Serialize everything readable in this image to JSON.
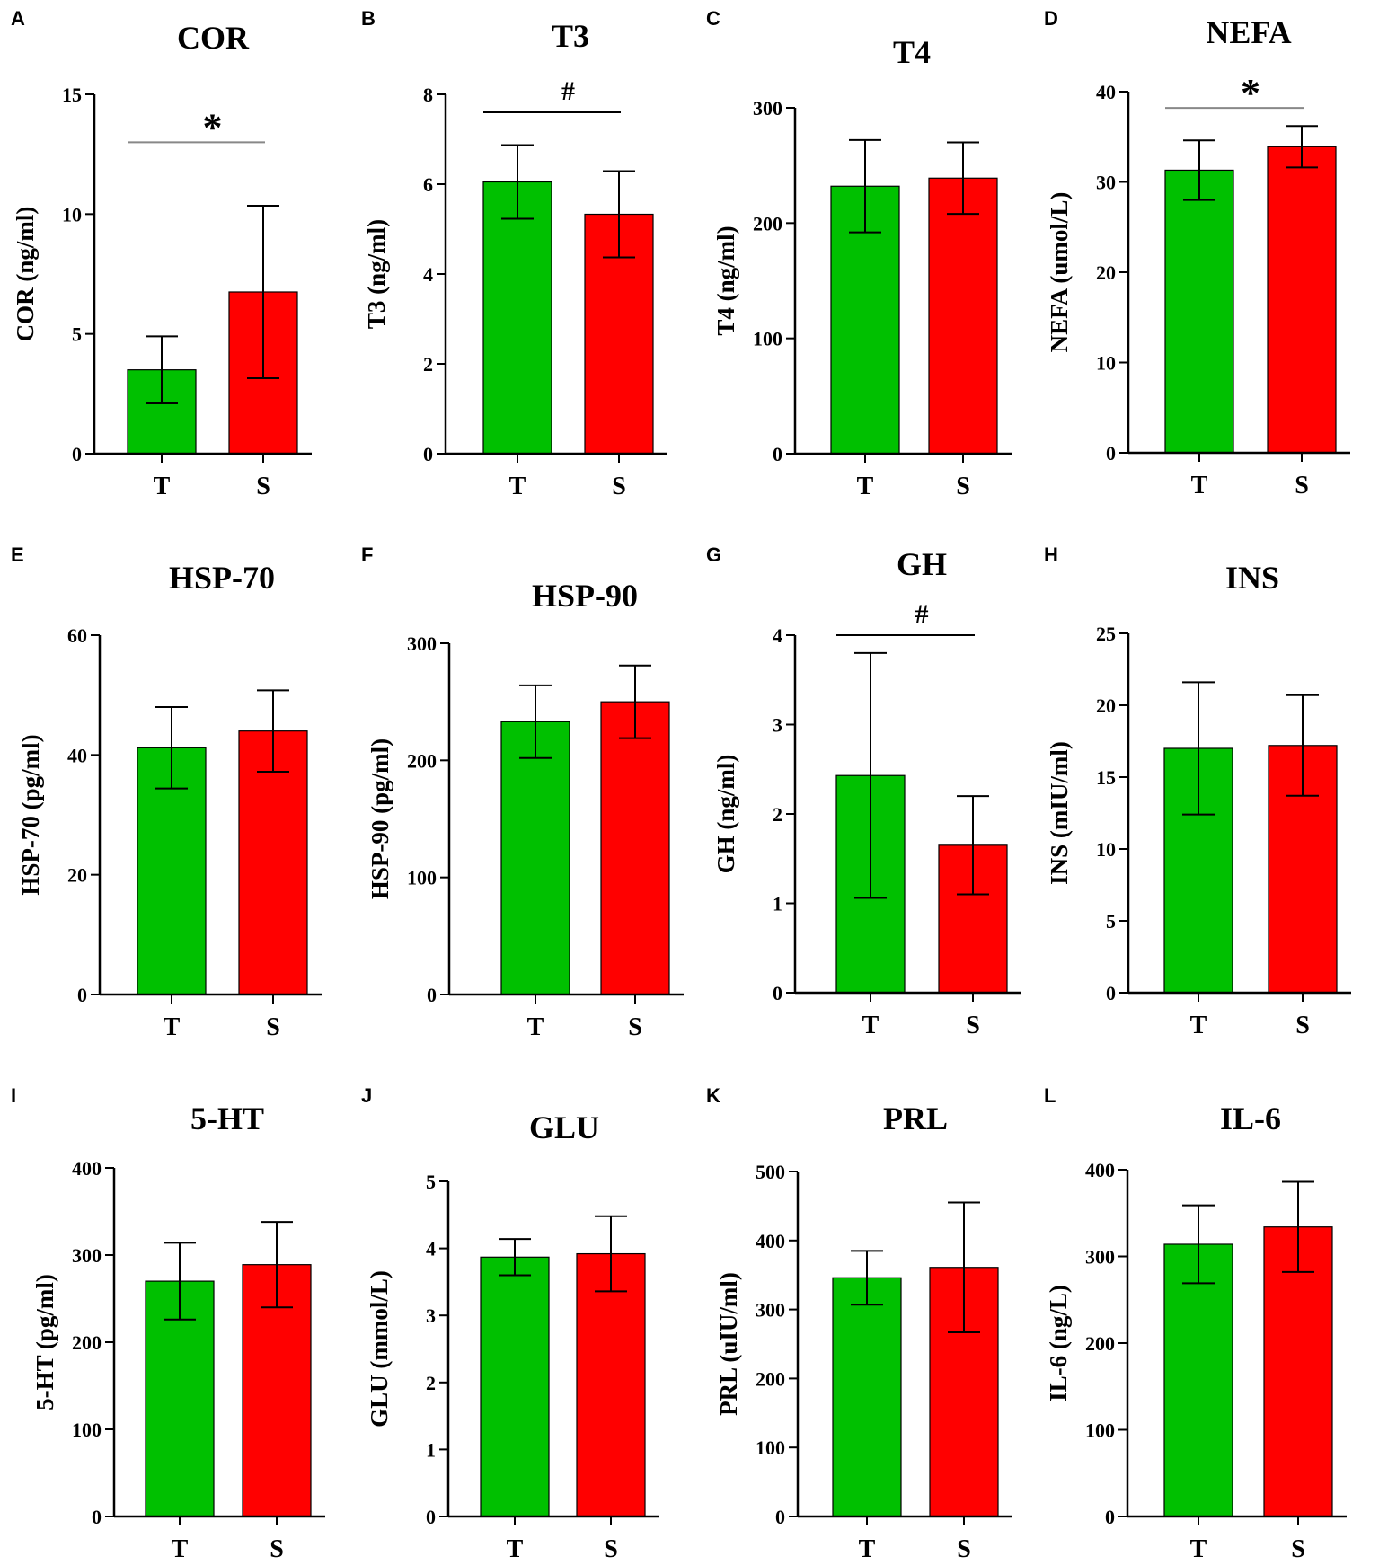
{
  "colors": {
    "T": "#00c000",
    "S": "#ff0000",
    "axis": "#000000"
  },
  "chart_data": [
    {
      "panel": "A",
      "type": "bar",
      "title": "COR",
      "ylabel": "COR (ng/ml)",
      "categories": [
        "T",
        "S"
      ],
      "values": [
        3.5,
        6.75
      ],
      "errors": [
        1.4,
        3.6
      ],
      "ylim": [
        0,
        15
      ],
      "yticks": [
        0,
        5,
        10,
        15
      ],
      "sig": {
        "symbol": "*",
        "value": 13.0
      }
    },
    {
      "panel": "B",
      "type": "bar",
      "title": "T3",
      "ylabel": "T3 (ng/ml)",
      "categories": [
        "T",
        "S"
      ],
      "values": [
        6.05,
        5.33
      ],
      "errors": [
        0.82,
        0.96
      ],
      "ylim": [
        0,
        8
      ],
      "yticks": [
        0,
        2,
        4,
        6,
        8
      ],
      "sig": {
        "symbol": "#",
        "value": 7.6
      }
    },
    {
      "panel": "C",
      "type": "bar",
      "title": "T4",
      "ylabel": "T4 (ng/ml)",
      "categories": [
        "T",
        "S"
      ],
      "values": [
        232,
        239
      ],
      "errors": [
        40,
        31
      ],
      "ylim": [
        0,
        300
      ],
      "yticks": [
        0,
        100,
        200,
        300
      ],
      "sig": null
    },
    {
      "panel": "D",
      "type": "bar",
      "title": "NEFA",
      "ylabel": "NEFA (umol/L)",
      "categories": [
        "T",
        "S"
      ],
      "values": [
        31.3,
        33.9
      ],
      "errors": [
        3.3,
        2.3
      ],
      "ylim": [
        0,
        40
      ],
      "yticks": [
        0,
        10,
        20,
        30,
        40
      ],
      "sig": {
        "symbol": "*",
        "value": 38.2
      }
    },
    {
      "panel": "E",
      "type": "bar",
      "title": "HSP-70",
      "ylabel": "HSP-70 (pg/ml)",
      "categories": [
        "T",
        "S"
      ],
      "values": [
        41.2,
        44.0
      ],
      "errors": [
        6.8,
        6.8
      ],
      "ylim": [
        0,
        60
      ],
      "yticks": [
        0,
        20,
        40,
        60
      ],
      "sig": null
    },
    {
      "panel": "F",
      "type": "bar",
      "title": "HSP-90",
      "ylabel": "HSP-90 (pg/ml)",
      "categories": [
        "T",
        "S"
      ],
      "values": [
        233,
        250
      ],
      "errors": [
        31,
        31
      ],
      "ylim": [
        0,
        300
      ],
      "yticks": [
        0,
        100,
        200,
        300
      ],
      "sig": null
    },
    {
      "panel": "G",
      "type": "bar",
      "title": "GH",
      "ylabel": "GH (ng/ml)",
      "categories": [
        "T",
        "S"
      ],
      "values": [
        2.43,
        1.65
      ],
      "errors": [
        1.37,
        0.55
      ],
      "ylim": [
        0,
        4
      ],
      "yticks": [
        0,
        1,
        2,
        3,
        4
      ],
      "sig": {
        "symbol": "#",
        "value": 4.0
      }
    },
    {
      "panel": "H",
      "type": "bar",
      "title": "INS",
      "ylabel": "INS (mIU/ml)",
      "categories": [
        "T",
        "S"
      ],
      "values": [
        17.0,
        17.2
      ],
      "errors": [
        4.6,
        3.5
      ],
      "ylim": [
        0,
        25
      ],
      "yticks": [
        0,
        5,
        10,
        15,
        20,
        25
      ],
      "sig": null
    },
    {
      "panel": "I",
      "type": "bar",
      "title": "5-HT",
      "ylabel": "5-HT (pg/ml)",
      "categories": [
        "T",
        "S"
      ],
      "values": [
        270,
        289
      ],
      "errors": [
        44,
        49
      ],
      "ylim": [
        0,
        400
      ],
      "yticks": [
        0,
        100,
        200,
        300,
        400
      ],
      "sig": null
    },
    {
      "panel": "J",
      "type": "bar",
      "title": "GLU",
      "ylabel": "GLU (mmol/L)",
      "categories": [
        "T",
        "S"
      ],
      "values": [
        3.87,
        3.92
      ],
      "errors": [
        0.27,
        0.56
      ],
      "ylim": [
        0,
        5
      ],
      "yticks": [
        0,
        1,
        2,
        3,
        4,
        5
      ],
      "sig": null
    },
    {
      "panel": "K",
      "type": "bar",
      "title": "PRL",
      "ylabel": "PRL (uIU/ml)",
      "categories": [
        "T",
        "S"
      ],
      "values": [
        346,
        361
      ],
      "errors": [
        39,
        94
      ],
      "ylim": [
        0,
        500
      ],
      "yticks": [
        0,
        100,
        200,
        300,
        400,
        500
      ],
      "sig": null
    },
    {
      "panel": "L",
      "type": "bar",
      "title": "IL-6",
      "ylabel": "IL-6 (ng/L)",
      "categories": [
        "T",
        "S"
      ],
      "values": [
        314,
        334
      ],
      "errors": [
        45,
        52
      ],
      "ylim": [
        0,
        400
      ],
      "yticks": [
        0,
        100,
        200,
        300,
        400
      ],
      "sig": null
    }
  ]
}
